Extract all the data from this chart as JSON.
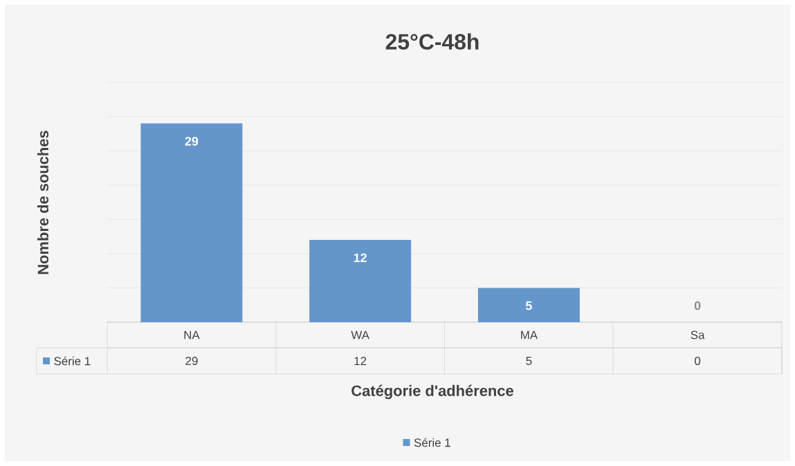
{
  "chart_data": {
    "type": "bar",
    "title": "25°C-48h",
    "xlabel": "Catégorie d'adhérence",
    "ylabel": "Nombre de souches",
    "categories": [
      "NA",
      "WA",
      "MA",
      "Sa"
    ],
    "series": [
      {
        "name": "Série 1",
        "color": "#6596cb",
        "values": [
          29,
          12,
          5,
          0
        ],
        "value_labels": [
          "29",
          "12",
          "5",
          "0"
        ]
      }
    ],
    "ylim": [
      0,
      35
    ],
    "yticks": [
      {
        "value": 0,
        "label": null
      },
      {
        "value": 5,
        "label": null
      },
      {
        "value": 10,
        "label": null
      },
      {
        "value": 15,
        "label": null
      },
      {
        "value": 20,
        "label": null
      },
      {
        "value": 25,
        "label": null
      },
      {
        "value": 30,
        "label": null
      },
      {
        "value": 35,
        "label": null
      }
    ],
    "annotations": [
      "29",
      "12",
      "5",
      "0"
    ],
    "grid": "y",
    "legend": "bottom",
    "data_labels": true,
    "tick_labels": "x"
  }
}
